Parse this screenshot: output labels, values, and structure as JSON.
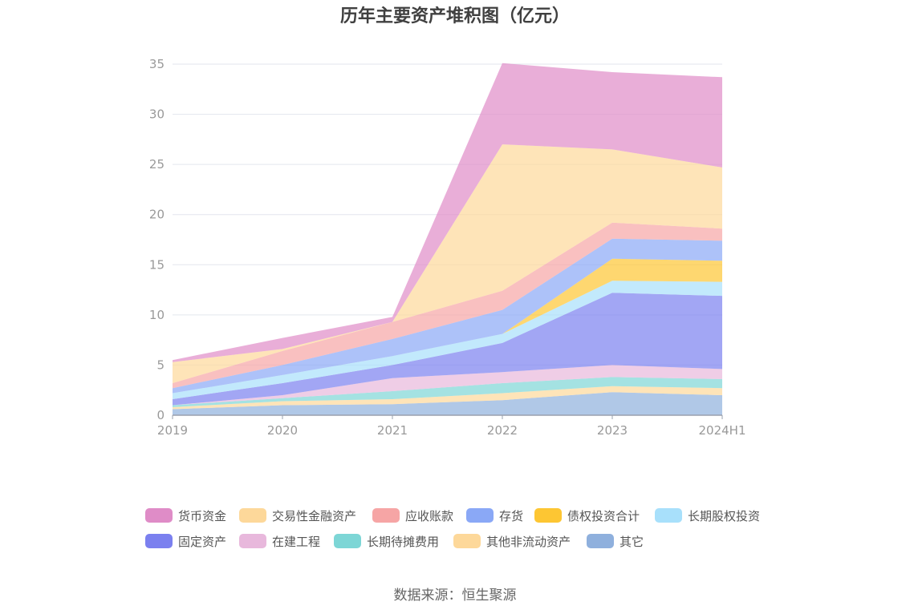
{
  "chart_data": {
    "type": "area",
    "stacked": true,
    "title": "历年主要资产堆积图（亿元）",
    "xlabel": "",
    "ylabel": "",
    "ylim": [
      0,
      35
    ],
    "yticks": [
      0,
      5,
      10,
      15,
      20,
      25,
      30,
      35
    ],
    "categories": [
      "2019",
      "2020",
      "2021",
      "2022",
      "2023",
      "2024H1"
    ],
    "grid": true,
    "legend_position": "bottom",
    "series": [
      {
        "name": "其它",
        "color": "#8fb0dd",
        "values": [
          0.6,
          1.0,
          1.1,
          1.5,
          2.3,
          2.0
        ]
      },
      {
        "name": "其他非流动资产",
        "color": "#fdd89a",
        "values": [
          0.2,
          0.4,
          0.5,
          0.7,
          0.6,
          0.7
        ]
      },
      {
        "name": "长期待摊费用",
        "color": "#7dd6d6",
        "values": [
          0.2,
          0.3,
          0.8,
          1.0,
          0.9,
          0.9
        ]
      },
      {
        "name": "在建工程",
        "color": "#e8b8dc",
        "values": [
          0.0,
          0.3,
          1.3,
          1.1,
          1.2,
          1.0
        ]
      },
      {
        "name": "固定资产",
        "color": "#7b80ef",
        "values": [
          0.6,
          1.2,
          1.3,
          2.9,
          7.2,
          7.3
        ]
      },
      {
        "name": "长期股权投资",
        "color": "#a8e0fb",
        "values": [
          0.6,
          0.8,
          0.9,
          0.9,
          1.2,
          1.4
        ]
      },
      {
        "name": "债权投资合计",
        "color": "#fdc633",
        "values": [
          0.0,
          0.0,
          0.0,
          0.0,
          2.2,
          2.1
        ]
      },
      {
        "name": "存货",
        "color": "#8aa8f6",
        "values": [
          0.5,
          1.0,
          1.7,
          2.4,
          2.0,
          2.0
        ]
      },
      {
        "name": "应收账款",
        "color": "#f6a5a5",
        "values": [
          0.5,
          1.4,
          1.7,
          1.9,
          1.6,
          1.2
        ]
      },
      {
        "name": "交易性金融资产",
        "color": "#fdd89a",
        "values": [
          2.1,
          0.2,
          0.0,
          14.6,
          7.3,
          6.1
        ]
      },
      {
        "name": "货币资金",
        "color": "#df8cc7",
        "values": [
          0.2,
          1.1,
          0.5,
          8.1,
          7.7,
          9.0
        ]
      }
    ],
    "legend_order": [
      "货币资金",
      "交易性金融资产",
      "应收账款",
      "存货",
      "债权投资合计",
      "长期股权投资",
      "固定资产",
      "在建工程",
      "长期待摊费用",
      "其他非流动资产",
      "其它"
    ]
  },
  "source_note": "数据来源：恒生聚源"
}
